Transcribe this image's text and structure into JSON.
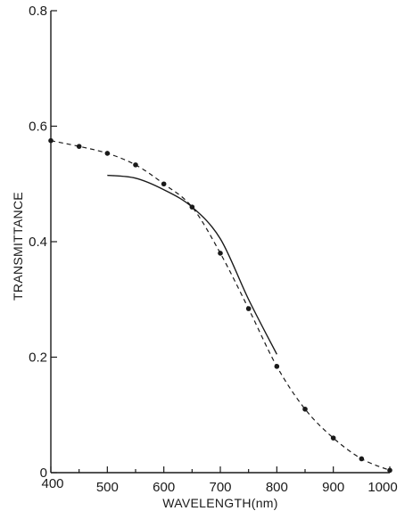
{
  "chart_data": {
    "type": "line",
    "title": "",
    "xlabel": "WAVELENGTH(nm)",
    "ylabel": "TRANSMITTANCE",
    "xlim": [
      400,
      1000
    ],
    "ylim": [
      0,
      0.8
    ],
    "x_ticks": [
      400,
      500,
      600,
      700,
      800,
      900,
      1000
    ],
    "y_ticks": [
      0,
      0.2,
      0.4,
      0.6,
      0.8
    ],
    "x_tick_labels": [
      "400",
      "500",
      "600",
      "700",
      "800",
      "900",
      "1000"
    ],
    "y_tick_labels": [
      "0",
      "0.2",
      "0.4",
      "0.6",
      "0.8"
    ],
    "grid": false,
    "legend": "none",
    "series": [
      {
        "style": "dashed-with-points",
        "x": [
          400,
          450,
          500,
          550,
          600,
          650,
          700,
          750,
          800,
          850,
          900,
          950,
          1000
        ],
        "y": [
          0.575,
          0.565,
          0.553,
          0.533,
          0.5,
          0.46,
          0.38,
          0.284,
          0.184,
          0.11,
          0.06,
          0.024,
          0.004
        ]
      },
      {
        "style": "solid",
        "x": [
          500,
          550,
          600,
          650,
          700,
          750,
          800
        ],
        "y": [
          0.515,
          0.51,
          0.49,
          0.46,
          0.405,
          0.3,
          0.205
        ]
      }
    ]
  }
}
